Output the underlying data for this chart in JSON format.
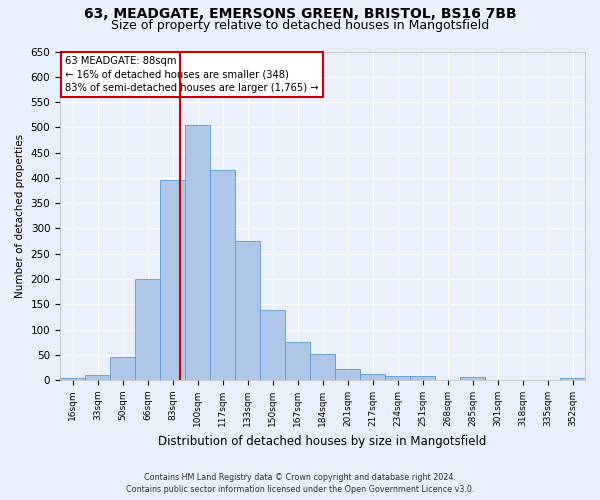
{
  "title1": "63, MEADGATE, EMERSONS GREEN, BRISTOL, BS16 7BB",
  "title2": "Size of property relative to detached houses in Mangotsfield",
  "xlabel": "Distribution of detached houses by size in Mangotsfield",
  "ylabel": "Number of detached properties",
  "categories": [
    "16sqm",
    "33sqm",
    "50sqm",
    "66sqm",
    "83sqm",
    "100sqm",
    "117sqm",
    "133sqm",
    "150sqm",
    "167sqm",
    "184sqm",
    "201sqm",
    "217sqm",
    "234sqm",
    "251sqm",
    "268sqm",
    "285sqm",
    "301sqm",
    "318sqm",
    "335sqm",
    "352sqm"
  ],
  "values": [
    5,
    10,
    45,
    200,
    395,
    505,
    415,
    275,
    138,
    75,
    52,
    22,
    12,
    8,
    8,
    0,
    6,
    0,
    0,
    0,
    5
  ],
  "bar_color": "#aec6e8",
  "bar_edge_color": "#5b9bd5",
  "annotation_text1": "63 MEADGATE: 88sqm",
  "annotation_text2": "← 16% of detached houses are smaller (348)",
  "annotation_text3": "83% of semi-detached houses are larger (1,765) →",
  "annotation_box_color": "#ffffff",
  "annotation_box_edge": "#cc0000",
  "ylim": [
    0,
    650
  ],
  "yticks": [
    0,
    50,
    100,
    150,
    200,
    250,
    300,
    350,
    400,
    450,
    500,
    550,
    600,
    650
  ],
  "footnote1": "Contains HM Land Registry data © Crown copyright and database right 2024.",
  "footnote2": "Contains public sector information licensed under the Open Government Licence v3.0.",
  "bg_color": "#eaf0fb",
  "grid_color": "#ffffff",
  "title1_fontsize": 10,
  "title2_fontsize": 9,
  "red_line_index": 4.29
}
